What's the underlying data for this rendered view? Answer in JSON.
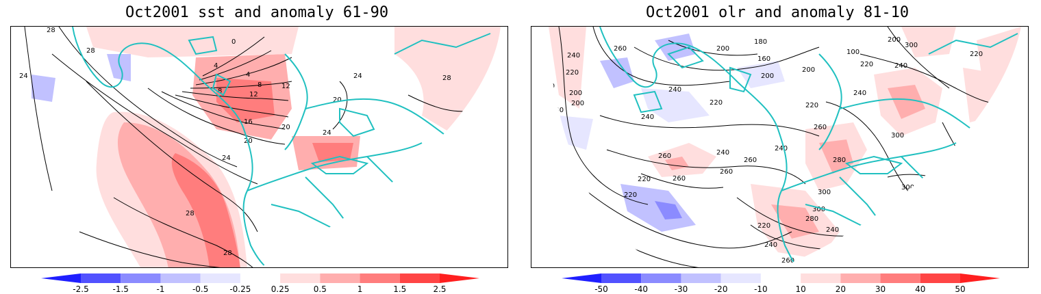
{
  "panels": [
    {
      "title": "Oct2001 sst and anomaly 61-90",
      "contour_labels": [
        "28",
        "28",
        "24",
        "0",
        "4",
        "4",
        "8",
        "8",
        "12",
        "16",
        "20",
        "20",
        "24",
        "24",
        "28",
        "28",
        "28",
        "12",
        "20",
        "24"
      ],
      "colorbar": {
        "ticks": [
          "-2.5",
          "-1.5",
          "-1",
          "-0.5",
          "-0.25",
          "0.25",
          "0.5",
          "1",
          "1.5",
          "2.5"
        ],
        "colors": [
          "#1f1fff",
          "#5252ff",
          "#8b8bff",
          "#c1c1ff",
          "#e6e6ff",
          "#ffffff",
          "#ffdede",
          "#ffaeae",
          "#ff7d7d",
          "#ff4545",
          "#ff1f1f"
        ]
      }
    },
    {
      "title": "Oct2001 olr and anomaly 81-10",
      "contour_labels": [
        "240",
        "260",
        "220",
        "260",
        "200",
        "240",
        "200",
        "180",
        "160",
        "200",
        "200",
        "200",
        "240",
        "220",
        "240",
        "260",
        "240",
        "260",
        "280",
        "300",
        "260",
        "260",
        "220",
        "220",
        "260",
        "240",
        "300",
        "300",
        "280",
        "240",
        "200",
        "200",
        "220",
        "240",
        "260",
        "300",
        "220",
        "240",
        "220",
        "200",
        "100",
        "240",
        "220",
        "300"
      ],
      "colorbar": {
        "ticks": [
          "-50",
          "-40",
          "-30",
          "-20",
          "-10",
          "10",
          "20",
          "30",
          "40",
          "50"
        ],
        "colors": [
          "#1f1fff",
          "#5252ff",
          "#8b8bff",
          "#c1c1ff",
          "#e6e6ff",
          "#ffffff",
          "#ffdede",
          "#ffaeae",
          "#ff7d7d",
          "#ff4545",
          "#ff1f1f"
        ]
      }
    }
  ],
  "colors": {
    "coastline": "#20c0c0",
    "contour": "#000000",
    "grid": "#999999"
  }
}
